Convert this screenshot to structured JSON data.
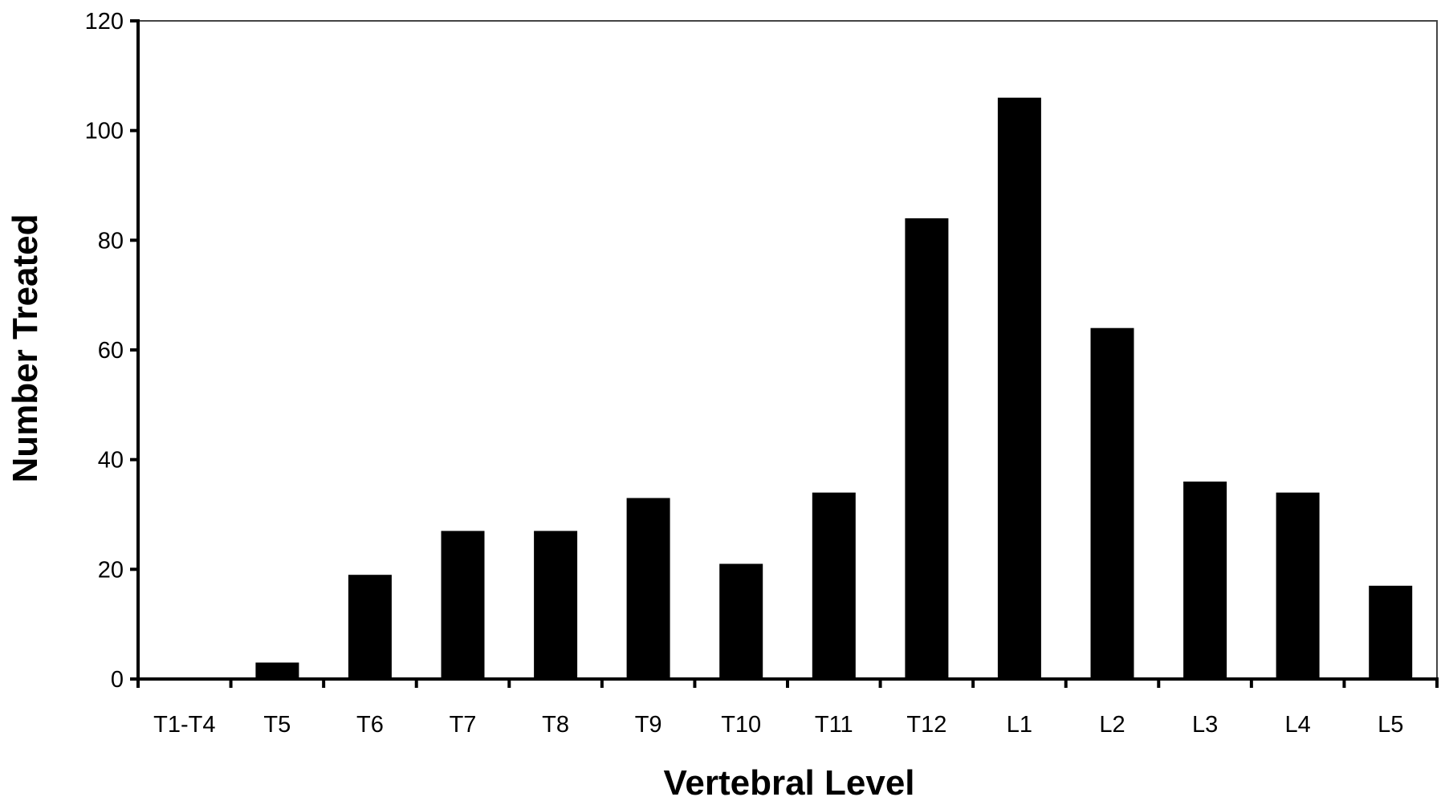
{
  "chart_data": {
    "type": "bar",
    "title": "",
    "xlabel": "Vertebral Level",
    "ylabel": "Number Treated",
    "categories": [
      "T1-T4",
      "T5",
      "T6",
      "T7",
      "T8",
      "T9",
      "T10",
      "T11",
      "T12",
      "L1",
      "L2",
      "L3",
      "L4",
      "L5"
    ],
    "values": [
      0,
      3,
      19,
      27,
      27,
      33,
      21,
      34,
      84,
      106,
      64,
      36,
      34,
      17
    ],
    "ylim": [
      0,
      120
    ],
    "yticks": [
      0,
      20,
      40,
      60,
      80,
      100,
      120
    ],
    "ytick_labels": [
      "0",
      "20",
      "40",
      "60",
      "80",
      "100",
      "120"
    ],
    "grid": false,
    "legend": "none",
    "bar_color": "#000000",
    "axis_color": "#000000"
  }
}
